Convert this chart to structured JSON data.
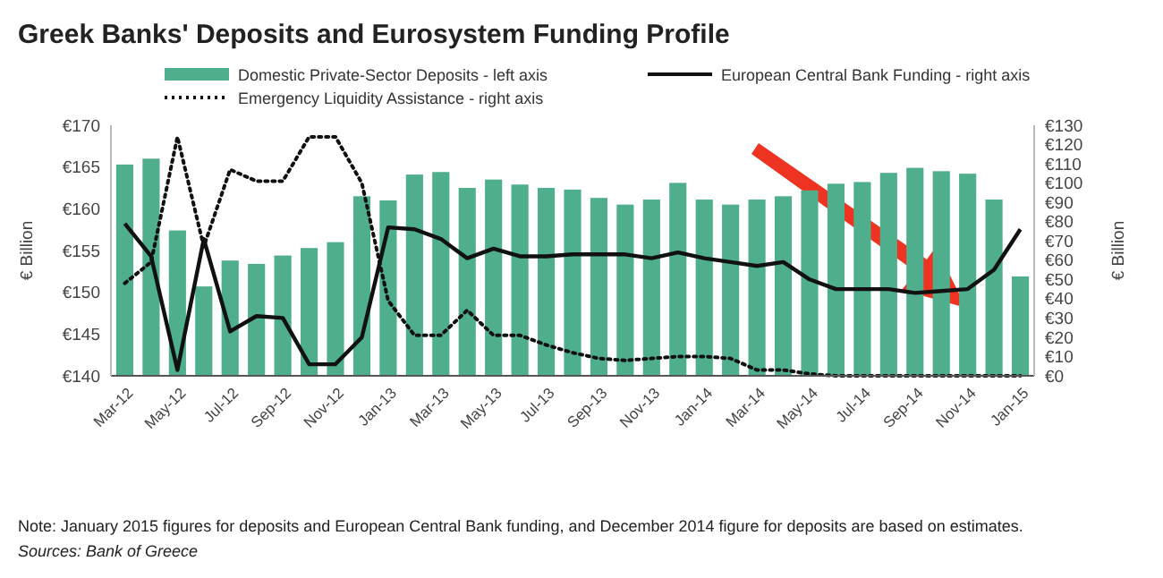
{
  "chart_data": {
    "type": "bar",
    "title": "Greek Banks' Deposits and Eurosystem Funding Profile",
    "categories": [
      "Mar-12",
      null,
      "May-12",
      null,
      "Jul-12",
      null,
      "Sep-12",
      null,
      "Nov-12",
      null,
      "Jan-13",
      null,
      "Mar-13",
      null,
      "May-13",
      null,
      "Jul-13",
      null,
      "Sep-13",
      null,
      "Nov-13",
      null,
      "Jan-14",
      null,
      "Mar-14",
      null,
      "May-14",
      null,
      "Jul-14",
      null,
      "Sep-14",
      null,
      "Nov-14",
      null,
      "Jan-15"
    ],
    "series": [
      {
        "name": "Domestic Private-Sector  Deposits - left axis",
        "color": "#4fae8c",
        "values": [
          165.3,
          166,
          157.4,
          150.7,
          153.8,
          153.4,
          154.4,
          155.3,
          156,
          161.5,
          161,
          164.1,
          164.4,
          162.5,
          163.5,
          162.9,
          162.5,
          162.3,
          161.3,
          160.5,
          161.1,
          163.1,
          161.1,
          160.5,
          161.1,
          161.5,
          162.2,
          163,
          163.2,
          164.3,
          164.9,
          164.5,
          164.2,
          161.1,
          151.9
        ]
      },
      {
        "name": "European Central Bank Funding - right axis",
        "type": "line",
        "axis": "y2",
        "line_style": "solid",
        "color": "#111111",
        "values": [
          79,
          62,
          3,
          71,
          23,
          31,
          30,
          6,
          6,
          20,
          77,
          76,
          71,
          61,
          66,
          62,
          62,
          63,
          63,
          63,
          61,
          64,
          61,
          59,
          57,
          59,
          50,
          45,
          45,
          45,
          43,
          44,
          45,
          55,
          76
        ]
      },
      {
        "name": "Emergency Liquidity Assistance  - right axis",
        "type": "line",
        "axis": "y2",
        "line_style": "dotted",
        "color": "#111111",
        "values": [
          48,
          59,
          124,
          67,
          107,
          101,
          101,
          124,
          124,
          100,
          39,
          21,
          21,
          34,
          21,
          21,
          16,
          12,
          9,
          8,
          9,
          10,
          10,
          9,
          3,
          3,
          1,
          0,
          0,
          0,
          0,
          0,
          0,
          0,
          0
        ]
      }
    ],
    "ylabel": "€ Billion",
    "y2label": "€ Billion",
    "ylim": [
      140,
      170
    ],
    "yticks": [
      {
        "value": 140,
        "label": "€140"
      },
      {
        "value": 145,
        "label": "€145"
      },
      {
        "value": 150,
        "label": "€150"
      },
      {
        "value": 155,
        "label": "€155"
      },
      {
        "value": 160,
        "label": "€160"
      },
      {
        "value": 165,
        "label": "€165"
      },
      {
        "value": 170,
        "label": "€170"
      }
    ],
    "y2lim": [
      0,
      130
    ],
    "y2ticks": [
      {
        "value": 0,
        "label": "€0"
      },
      {
        "value": 10,
        "label": "€10"
      },
      {
        "value": 20,
        "label": "€20"
      },
      {
        "value": 30,
        "label": "€30"
      },
      {
        "value": 40,
        "label": "€40"
      },
      {
        "value": 50,
        "label": "€50"
      },
      {
        "value": 60,
        "label": "€60"
      },
      {
        "value": 70,
        "label": "€70"
      },
      {
        "value": 80,
        "label": "€80"
      },
      {
        "value": 90,
        "label": "€90"
      },
      {
        "value": 100,
        "label": "€100"
      },
      {
        "value": 110,
        "label": "€110"
      },
      {
        "value": 120,
        "label": "€120"
      },
      {
        "value": 130,
        "label": "€130"
      }
    ],
    "legend": "top",
    "annotations": [
      "Note: January 2015 figures for deposits and European Central Bank funding, and December 2014 figure for deposits are based on estimates.",
      "Sources: Bank of Greece"
    ]
  }
}
